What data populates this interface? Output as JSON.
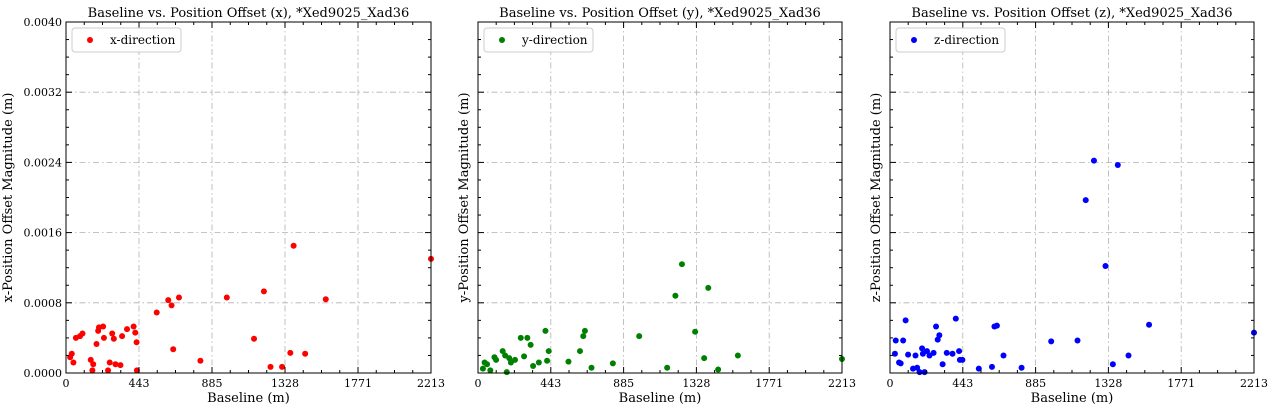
{
  "chart_data": [
    {
      "type": "scatter",
      "title": "Baseline vs. Position Offset (x), *Xed9025_Xad36",
      "xlabel": "Baseline (m)",
      "ylabel": "x-Position Offset Magnitude (m)",
      "xlim": [
        0,
        2213
      ],
      "ylim": [
        0,
        0.004
      ],
      "xticks": [
        "0",
        "443",
        "885",
        "1328",
        "1771",
        "2213"
      ],
      "yticks": [
        "0.0000",
        "0.0008",
        "0.0016",
        "0.0024",
        "0.0032",
        "0.0040"
      ],
      "show_ytick_labels": true,
      "grid": true,
      "legend": "upper-left",
      "series": [
        {
          "name": "x-direction",
          "color": "#ff0000",
          "points": [
            [
              25,
              0.00018
            ],
            [
              35,
              0.00022
            ],
            [
              45,
              0.00012
            ],
            [
              60,
              0.0004
            ],
            [
              85,
              0.00042
            ],
            [
              100,
              0.00045
            ],
            [
              150,
              0.00015
            ],
            [
              160,
              3e-05
            ],
            [
              165,
              0.0001
            ],
            [
              185,
              0.00033
            ],
            [
              195,
              0.00048
            ],
            [
              200,
              0.00052
            ],
            [
              225,
              0.00053
            ],
            [
              230,
              0.0004
            ],
            [
              255,
              3e-05
            ],
            [
              265,
              0.00012
            ],
            [
              280,
              0.00045
            ],
            [
              290,
              0.00039
            ],
            [
              300,
              0.0001
            ],
            [
              330,
              9e-05
            ],
            [
              340,
              0.00042
            ],
            [
              370,
              0.0005
            ],
            [
              410,
              0.00053
            ],
            [
              420,
              0.00046
            ],
            [
              428,
              0.00035
            ],
            [
              430,
              3e-05
            ],
            [
              550,
              0.00069
            ],
            [
              620,
              0.00083
            ],
            [
              640,
              0.00077
            ],
            [
              650,
              0.00027
            ],
            [
              685,
              0.00086
            ],
            [
              815,
              0.00014
            ],
            [
              975,
              0.00086
            ],
            [
              1140,
              0.00039
            ],
            [
              1200,
              0.00093
            ],
            [
              1240,
              7e-05
            ],
            [
              1310,
              7e-05
            ],
            [
              1360,
              0.00023
            ],
            [
              1380,
              0.00145
            ],
            [
              1450,
              0.00022
            ],
            [
              1575,
              0.00084
            ],
            [
              2213,
              0.0013
            ]
          ]
        }
      ]
    },
    {
      "type": "scatter",
      "title": "Baseline vs. Position Offset (y), *Xed9025_Xad36",
      "xlabel": "Baseline (m)",
      "ylabel": "y-Position Offset Magnitude (m)",
      "xlim": [
        0,
        2213
      ],
      "ylim": [
        0,
        0.004
      ],
      "xticks": [
        "0",
        "443",
        "885",
        "1328",
        "1771",
        "2213"
      ],
      "yticks": [
        "0.0000",
        "0.0008",
        "0.0016",
        "0.0024",
        "0.0032",
        "0.0040"
      ],
      "show_ytick_labels": false,
      "grid": true,
      "legend": "upper-left",
      "series": [
        {
          "name": "y-direction",
          "color": "#008000",
          "points": [
            [
              30,
              5e-05
            ],
            [
              40,
              0.00012
            ],
            [
              55,
              0.0001
            ],
            [
              75,
              3e-05
            ],
            [
              100,
              0.00018
            ],
            [
              110,
              0.00015
            ],
            [
              150,
              0.00025
            ],
            [
              165,
              0.0002
            ],
            [
              175,
              1e-05
            ],
            [
              190,
              0.00017
            ],
            [
              200,
              0.00012
            ],
            [
              225,
              0.00015
            ],
            [
              260,
              0.0004
            ],
            [
              280,
              0.00019
            ],
            [
              300,
              0.0004
            ],
            [
              320,
              0.00032
            ],
            [
              335,
              8e-05
            ],
            [
              370,
              0.00012
            ],
            [
              410,
              0.00048
            ],
            [
              420,
              0.00014
            ],
            [
              430,
              0.00025
            ],
            [
              550,
              0.00013
            ],
            [
              620,
              0.00025
            ],
            [
              640,
              0.00042
            ],
            [
              650,
              0.00048
            ],
            [
              690,
              6e-05
            ],
            [
              820,
              0.00011
            ],
            [
              980,
              0.00042
            ],
            [
              1150,
              6e-05
            ],
            [
              1200,
              0.00088
            ],
            [
              1240,
              0.00124
            ],
            [
              1320,
              0.00047
            ],
            [
              1375,
              0.00017
            ],
            [
              1400,
              0.00097
            ],
            [
              1460,
              4e-05
            ],
            [
              1580,
              0.0002
            ],
            [
              2213,
              0.00016
            ]
          ]
        }
      ]
    },
    {
      "type": "scatter",
      "title": "Baseline vs. Position Offset (z), *Xed9025_Xad36",
      "xlabel": "Baseline (m)",
      "ylabel": "z-Position Offset Magnitude (m)",
      "xlim": [
        0,
        2213
      ],
      "ylim": [
        0,
        0.004
      ],
      "xticks": [
        "0",
        "443",
        "885",
        "1328",
        "1771",
        "2213"
      ],
      "yticks": [
        "0.0000",
        "0.0008",
        "0.0016",
        "0.0024",
        "0.0032",
        "0.0040"
      ],
      "show_ytick_labels": false,
      "grid": true,
      "legend": "upper-left",
      "series": [
        {
          "name": "z-direction",
          "color": "#0000ff",
          "points": [
            [
              30,
              0.00022
            ],
            [
              35,
              0.00037
            ],
            [
              55,
              0.00012
            ],
            [
              65,
              0.00011
            ],
            [
              80,
              0.00037
            ],
            [
              95,
              0.0006
            ],
            [
              110,
              0.00021
            ],
            [
              140,
              5e-05
            ],
            [
              155,
              0.0002
            ],
            [
              165,
              6e-05
            ],
            [
              180,
              1e-05
            ],
            [
              195,
              0.00028
            ],
            [
              200,
              0.00022
            ],
            [
              210,
              1e-05
            ],
            [
              225,
              0.00025
            ],
            [
              240,
              0.0002
            ],
            [
              265,
              0.00023
            ],
            [
              280,
              0.00053
            ],
            [
              290,
              0.00038
            ],
            [
              300,
              0.00043
            ],
            [
              320,
              0.0001
            ],
            [
              345,
              0.00023
            ],
            [
              380,
              0.00022
            ],
            [
              400,
              0.00062
            ],
            [
              420,
              0.00025
            ],
            [
              425,
              0.00015
            ],
            [
              440,
              0.00015
            ],
            [
              540,
              5e-05
            ],
            [
              620,
              7e-05
            ],
            [
              635,
              0.00053
            ],
            [
              650,
              0.00054
            ],
            [
              690,
              0.0002
            ],
            [
              800,
              6e-05
            ],
            [
              980,
              0.00036
            ],
            [
              1140,
              0.00037
            ],
            [
              1190,
              0.00197
            ],
            [
              1240,
              0.00242
            ],
            [
              1310,
              0.00122
            ],
            [
              1355,
              0.0001
            ],
            [
              1385,
              0.00237
            ],
            [
              1450,
              0.0002
            ],
            [
              1575,
              0.00055
            ],
            [
              2213,
              0.00046
            ]
          ]
        }
      ]
    }
  ]
}
